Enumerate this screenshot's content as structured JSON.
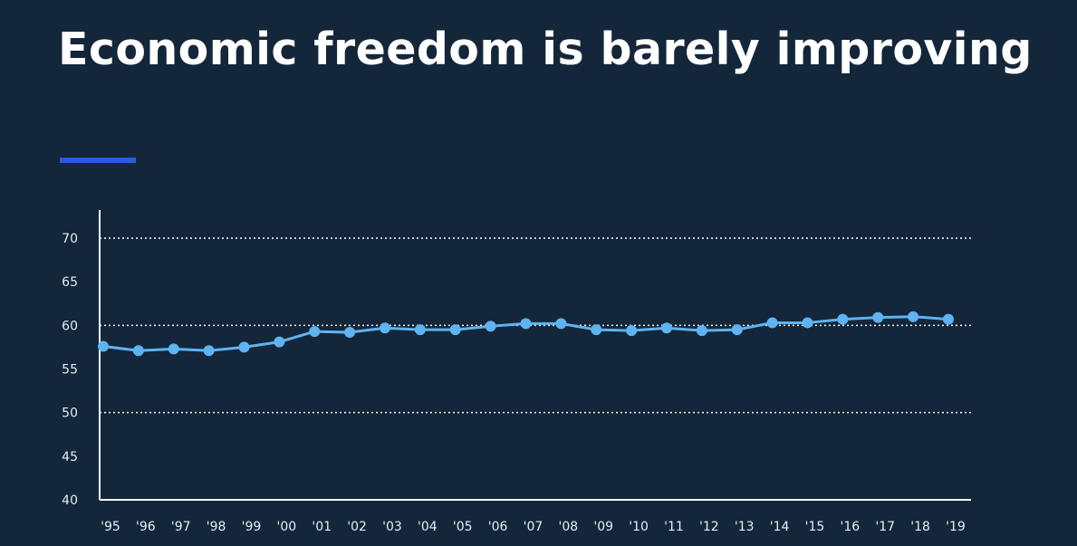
{
  "header": {
    "title": "Economic freedom is barely improving"
  },
  "colors": {
    "background": "#13263a",
    "accent": "#2a5ae0",
    "series": "#5fb3f0",
    "axis": "#ffffff",
    "grid": "#ffffff"
  },
  "chart_data": {
    "type": "line",
    "title": "",
    "xlabel": "",
    "ylabel": "",
    "ylim": [
      40,
      70
    ],
    "yticks": [
      40,
      45,
      50,
      55,
      60,
      65,
      70
    ],
    "grid": "dotted horizontal at 50, 60, 70",
    "grid_lines": [
      50,
      60,
      70
    ],
    "legend": "none",
    "x": [
      "'95",
      "'96",
      "'97",
      "'98",
      "'99",
      "'00",
      "'01",
      "'02",
      "'03",
      "'04",
      "'05",
      "'06",
      "'07",
      "'08",
      "'09",
      "'10",
      "'11",
      "'12",
      "'13",
      "'14",
      "'15",
      "'16",
      "'17",
      "'18",
      "'19"
    ],
    "series": [
      {
        "values": [
          57.6,
          57.1,
          57.3,
          57.1,
          57.5,
          58.1,
          59.3,
          59.2,
          59.7,
          59.5,
          59.5,
          59.9,
          60.2,
          60.2,
          59.5,
          59.4,
          59.7,
          59.4,
          59.5,
          60.3,
          60.3,
          60.7,
          60.9,
          61.0,
          60.7
        ]
      }
    ]
  }
}
